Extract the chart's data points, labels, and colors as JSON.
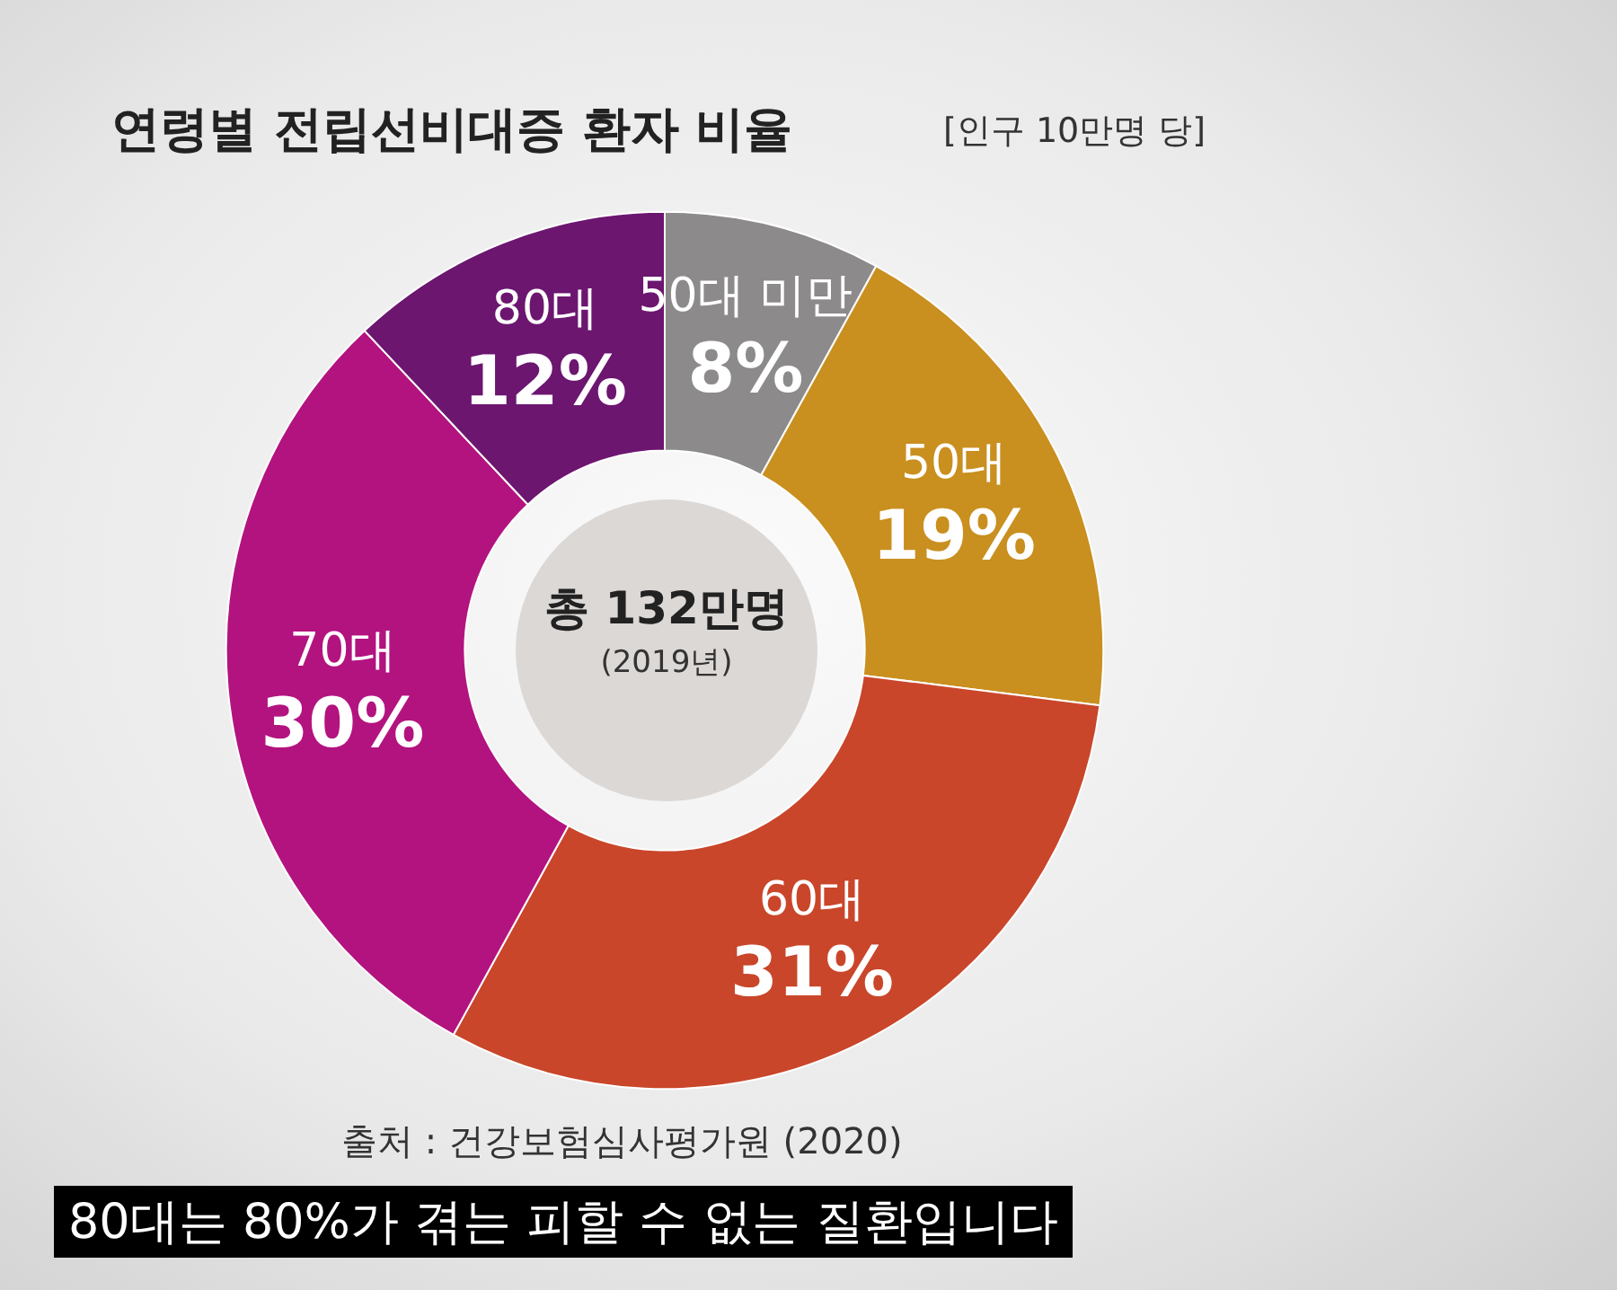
{
  "chart_data": {
    "type": "donut",
    "title": "연령별 전립선비대증 환자 비율",
    "subtitle": "[인구 10만명 당]",
    "categories": [
      "50대 미만",
      "50대",
      "60대",
      "70대",
      "80대"
    ],
    "values": [
      8,
      19,
      31,
      30,
      12
    ],
    "value_labels": [
      "8%",
      "19%",
      "31%",
      "30%",
      "12%"
    ],
    "colors": [
      "#8c8a8a",
      "#c98f1f",
      "#c9462a",
      "#b3137f",
      "#6c1670"
    ],
    "legend": false,
    "annotations": [
      "총 132만명",
      "(2019년)",
      "출처 : 건강보험심사평가원 (2020)",
      "80대는 80%가 겪는 피할 수 없는 질환입니다"
    ]
  }
}
